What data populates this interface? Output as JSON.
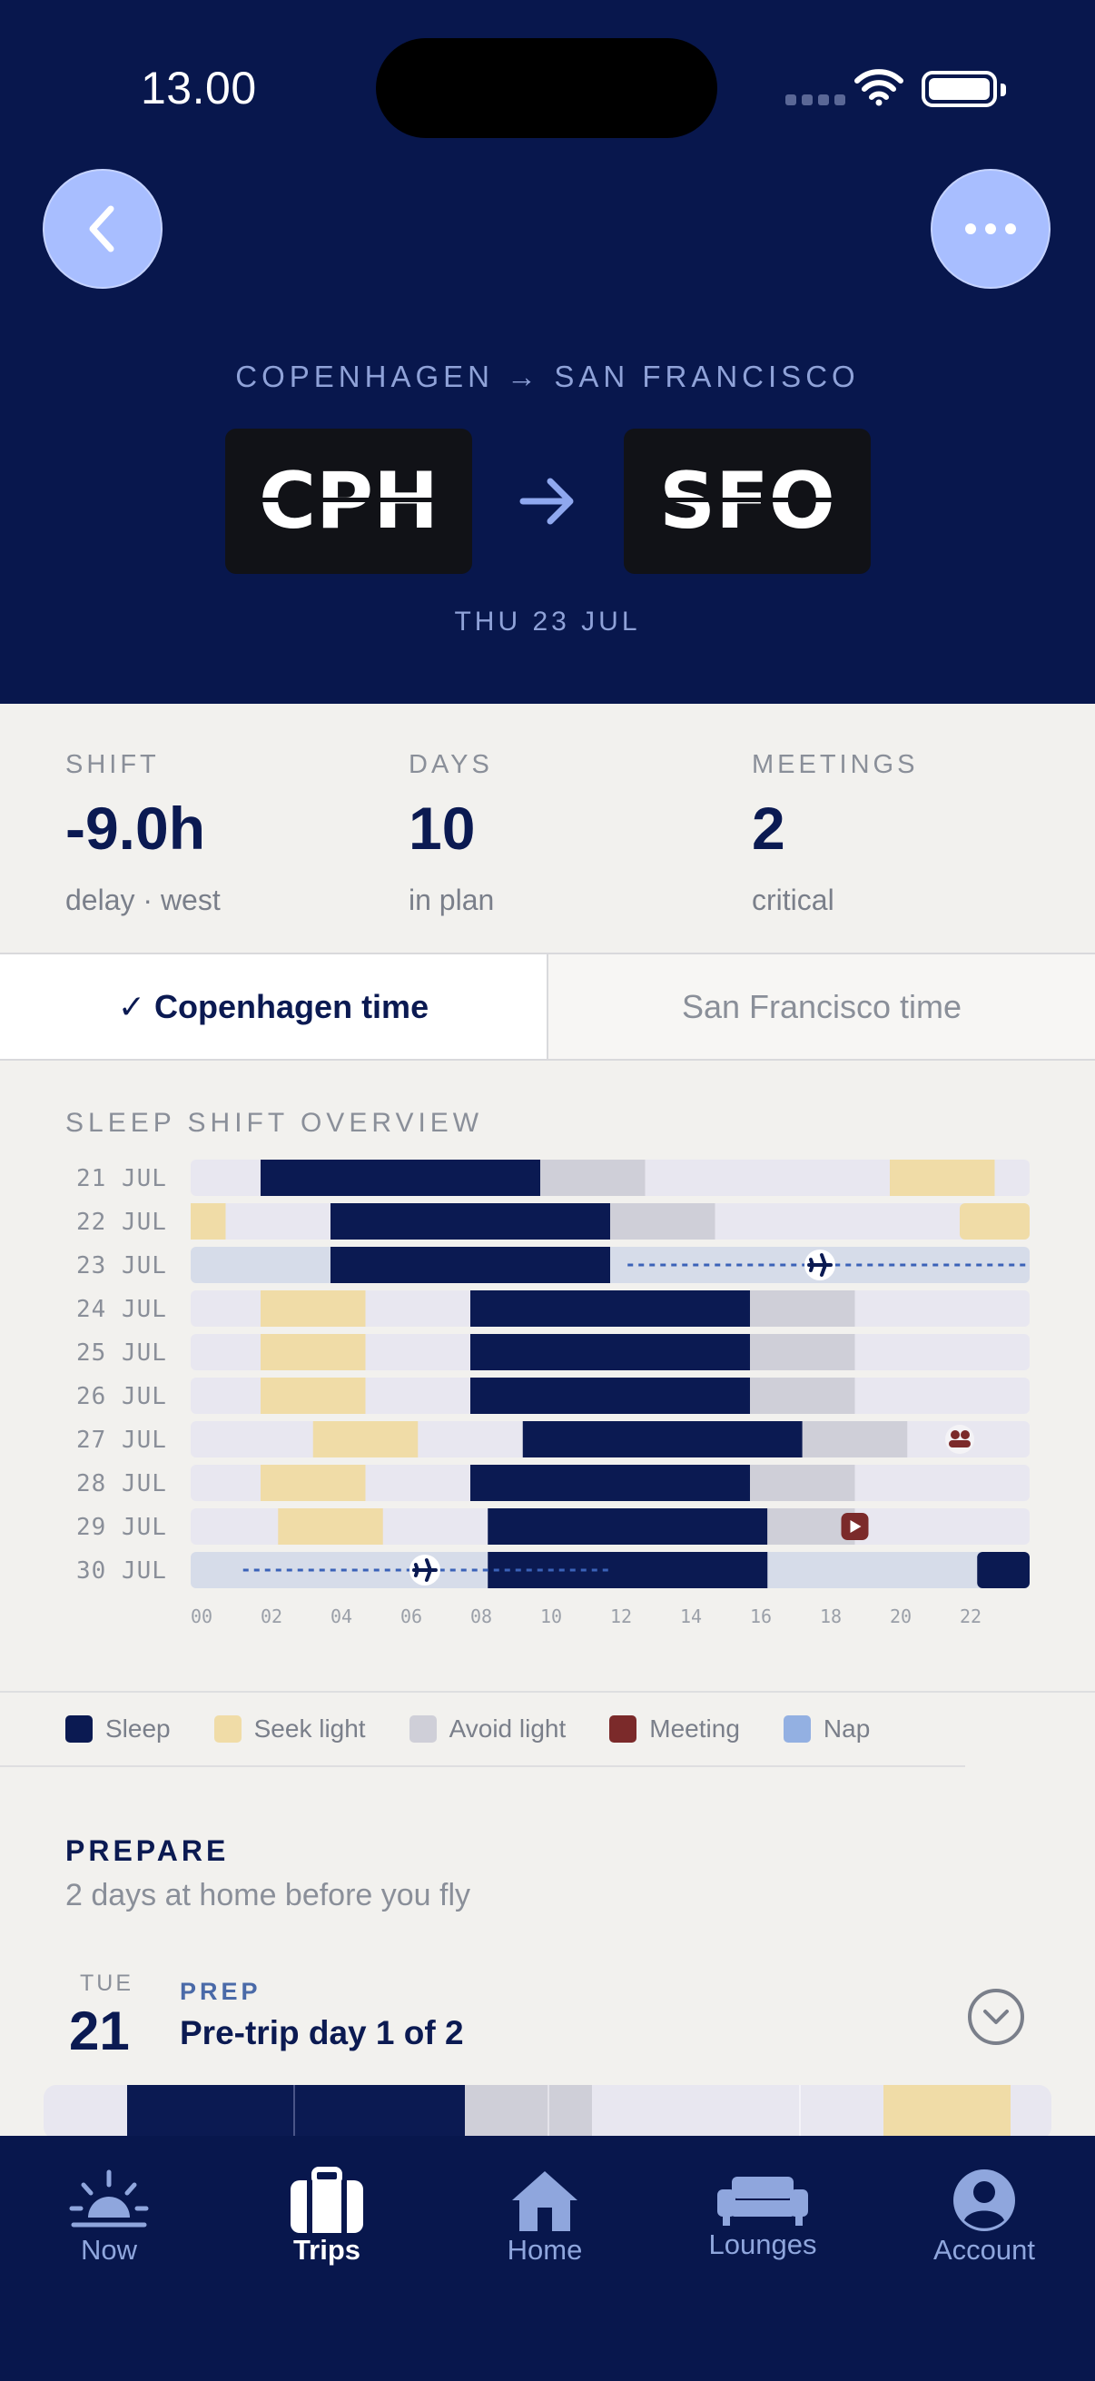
{
  "status_bar": {
    "time": "13.00"
  },
  "header": {
    "route_label": "COPENHAGEN → SAN FRANCISCO",
    "from_code": "CPH",
    "to_code": "SFO",
    "date": "THU 23 JUL",
    "back_icon": "chevron-left-icon",
    "more_icon": "ellipsis-icon"
  },
  "stats": [
    {
      "label": "SHIFT",
      "value": "-9.0h",
      "sub": "delay · west"
    },
    {
      "label": "DAYS",
      "value": "10",
      "sub": "in plan"
    },
    {
      "label": "MEETINGS",
      "value": "2",
      "sub": "critical"
    }
  ],
  "timezone_toggle": {
    "active": "✓ Copenhagen time",
    "inactive": "San Francisco time"
  },
  "overview": {
    "title": "SLEEP SHIFT OVERVIEW",
    "hour_ticks": [
      "00",
      "02",
      "04",
      "06",
      "08",
      "10",
      "12",
      "14",
      "16",
      "18",
      "20",
      "22"
    ],
    "rows": [
      {
        "label": "21 JUL",
        "segments": [
          {
            "type": "sleep",
            "start": 2,
            "end": 10
          },
          {
            "type": "avoid",
            "start": 10,
            "end": 13
          },
          {
            "type": "seek",
            "start": 20,
            "end": 23
          }
        ]
      },
      {
        "label": "22 JUL",
        "segments": [
          {
            "type": "seek",
            "start": 0,
            "end": 1
          },
          {
            "type": "sleep",
            "start": 4,
            "end": 12
          },
          {
            "type": "avoid",
            "start": 12,
            "end": 15
          },
          {
            "type": "seek",
            "start": 22,
            "end": 24
          }
        ]
      },
      {
        "label": "23 JUL",
        "travel": true,
        "segments": [
          {
            "type": "sleep",
            "start": 4,
            "end": 12
          }
        ],
        "flight": {
          "start": 12.5,
          "end": 24,
          "plane_at": 18
        }
      },
      {
        "label": "24 JUL",
        "segments": [
          {
            "type": "seek",
            "start": 2,
            "end": 5
          },
          {
            "type": "sleep",
            "start": 8,
            "end": 16
          },
          {
            "type": "avoid",
            "start": 16,
            "end": 19
          }
        ]
      },
      {
        "label": "25 JUL",
        "segments": [
          {
            "type": "seek",
            "start": 2,
            "end": 5
          },
          {
            "type": "sleep",
            "start": 8,
            "end": 16
          },
          {
            "type": "avoid",
            "start": 16,
            "end": 19
          }
        ]
      },
      {
        "label": "26 JUL",
        "segments": [
          {
            "type": "seek",
            "start": 2,
            "end": 5
          },
          {
            "type": "sleep",
            "start": 8,
            "end": 16
          },
          {
            "type": "avoid",
            "start": 16,
            "end": 19
          }
        ]
      },
      {
        "label": "27 JUL",
        "segments": [
          {
            "type": "seek",
            "start": 3.5,
            "end": 6.5
          },
          {
            "type": "sleep",
            "start": 9.5,
            "end": 17.5
          },
          {
            "type": "avoid",
            "start": 17.5,
            "end": 20.5
          }
        ],
        "marker": {
          "type": "meeting-group",
          "at": 22
        }
      },
      {
        "label": "28 JUL",
        "segments": [
          {
            "type": "seek",
            "start": 2,
            "end": 5
          },
          {
            "type": "sleep",
            "start": 8,
            "end": 16
          },
          {
            "type": "avoid",
            "start": 16,
            "end": 19
          }
        ]
      },
      {
        "label": "29 JUL",
        "segments": [
          {
            "type": "seek",
            "start": 2.5,
            "end": 5.5
          },
          {
            "type": "sleep",
            "start": 8.5,
            "end": 16.5
          },
          {
            "type": "avoid",
            "start": 16.5,
            "end": 19
          }
        ],
        "marker": {
          "type": "meeting-video",
          "at": 19
        }
      },
      {
        "label": "30 JUL",
        "travel": true,
        "segments": [
          {
            "type": "sleep",
            "start": 8.5,
            "end": 16.5
          },
          {
            "type": "sleep",
            "start": 22.5,
            "end": 24
          }
        ],
        "flight": {
          "start": 1.5,
          "end": 12,
          "plane_at": 6.7
        }
      }
    ]
  },
  "legend": [
    {
      "key": "sleep",
      "label": "Sleep",
      "color": "#0b1a52"
    },
    {
      "key": "seek",
      "label": "Seek light",
      "color": "#f0dca7"
    },
    {
      "key": "avoid",
      "label": "Avoid light",
      "color": "#cfcfd8"
    },
    {
      "key": "meeting",
      "label": "Meeting",
      "color": "#7b2a2a"
    },
    {
      "key": "nap",
      "label": "Nap",
      "color": "#93b0e2"
    }
  ],
  "prepare": {
    "title": "PREPARE",
    "subtitle": "2 days at home before you fly",
    "day": {
      "dow": "TUE",
      "num": "21",
      "tag": "PREP",
      "title": "Pre-trip day 1 of 2"
    }
  },
  "tabs": [
    {
      "label": "Now",
      "icon": "sunrise-icon",
      "active": false
    },
    {
      "label": "Trips",
      "icon": "suitcase-icon",
      "active": true
    },
    {
      "label": "Home",
      "icon": "house-icon",
      "active": false
    },
    {
      "label": "Lounges",
      "icon": "sofa-icon",
      "active": false
    },
    {
      "label": "Account",
      "icon": "person-icon",
      "active": false
    }
  ]
}
